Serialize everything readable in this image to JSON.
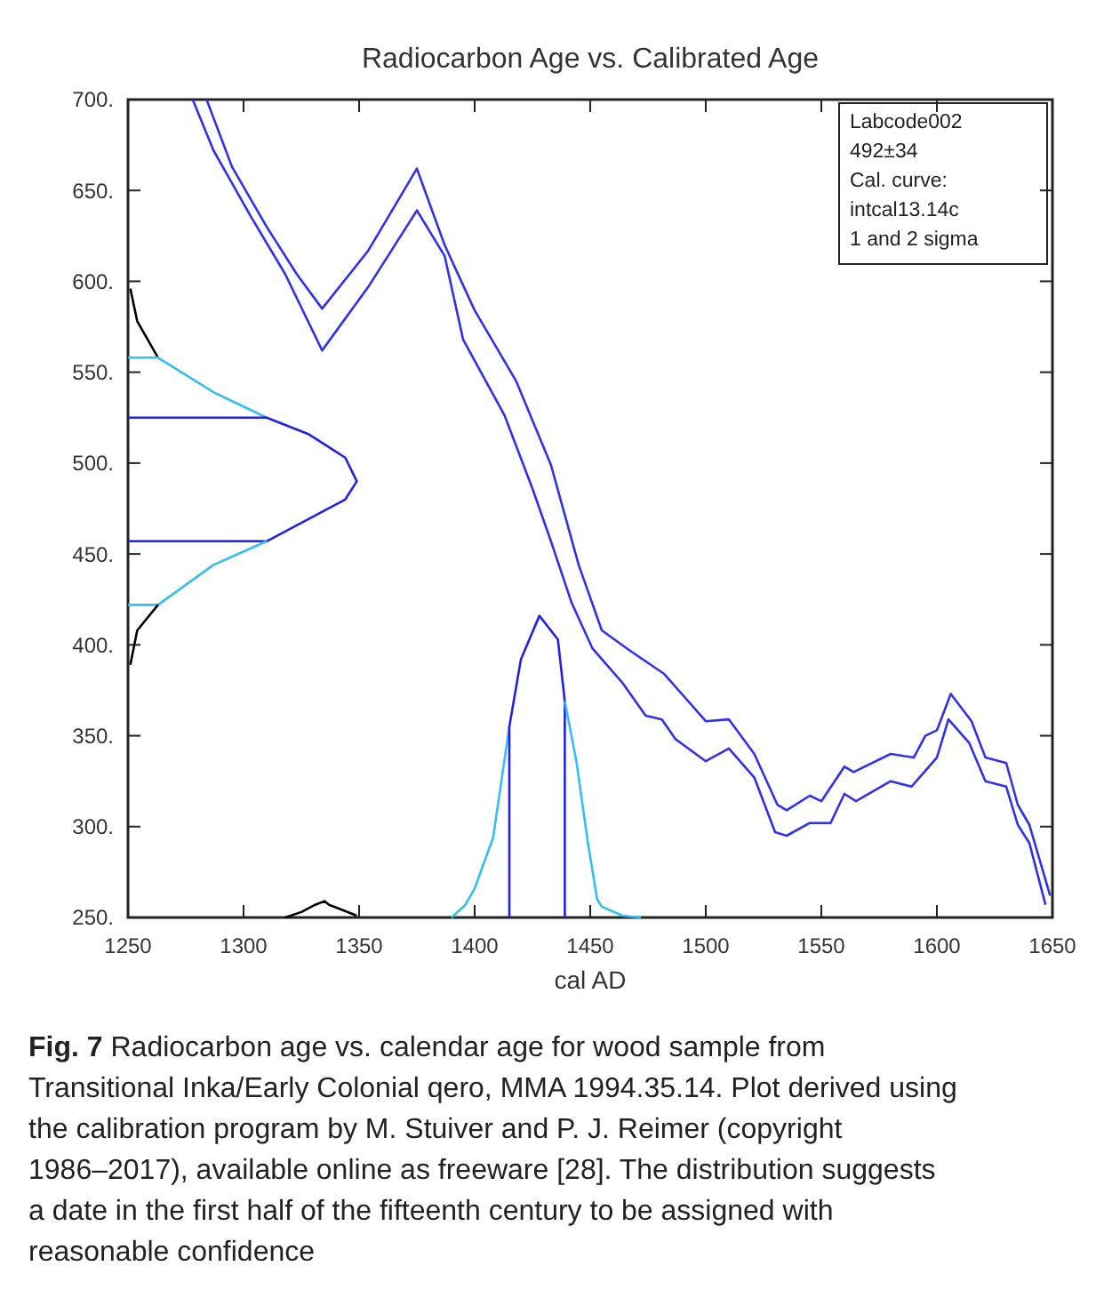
{
  "chart_data": {
    "type": "line",
    "title": "Radiocarbon Age vs. Calibrated Age",
    "xlabel": "cal AD",
    "xlim": [
      1250,
      1650
    ],
    "xticks": [
      1250,
      1300,
      1350,
      1400,
      1450,
      1500,
      1550,
      1600,
      1650
    ],
    "ylim": [
      250,
      700
    ],
    "yticks": [
      {
        "value": 250,
        "label": "250."
      },
      {
        "value": 300,
        "label": "300."
      },
      {
        "value": 350,
        "label": "350."
      },
      {
        "value": 400,
        "label": "400."
      },
      {
        "value": 450,
        "label": "450."
      },
      {
        "value": 500,
        "label": "500."
      },
      {
        "value": 550,
        "label": "550."
      },
      {
        "value": 600,
        "label": "600."
      },
      {
        "value": 650,
        "label": "650."
      },
      {
        "value": 700,
        "label": "700."
      }
    ],
    "grid": false,
    "marker": "none",
    "line_style": "solid",
    "series": [
      {
        "color": "#3030f0",
        "x": [
          1284,
          1295,
          1310,
          1323,
          1334,
          1354,
          1375,
          1387,
          1400,
          1418,
          1433,
          1445,
          1455,
          1467,
          1482,
          1500,
          1510,
          1521,
          1531,
          1535,
          1545,
          1550,
          1560,
          1564,
          1580,
          1590,
          1595,
          1600,
          1606,
          1615,
          1621,
          1630,
          1635,
          1640,
          1649
        ],
        "values": [
          700,
          663,
          630,
          604,
          585,
          617,
          662,
          620,
          584,
          545,
          499,
          444,
          408,
          397,
          384,
          358,
          359,
          340,
          312,
          309,
          317,
          314,
          333,
          330,
          340,
          338,
          350,
          353,
          373,
          358,
          338,
          335,
          312,
          301,
          262
        ]
      },
      {
        "color": "#3030f0",
        "x": [
          1278,
          1287,
          1303,
          1318,
          1334,
          1354,
          1375,
          1387,
          1395,
          1413,
          1425,
          1433,
          1442,
          1451,
          1464,
          1474,
          1481,
          1487,
          1500,
          1510,
          1521,
          1530,
          1535,
          1545,
          1554,
          1560,
          1565,
          1580,
          1589,
          1600,
          1605,
          1614,
          1621,
          1630,
          1635,
          1640,
          1647
        ],
        "values": [
          700,
          672,
          636,
          604,
          562,
          597,
          639,
          614,
          568,
          526,
          486,
          457,
          423,
          398,
          379,
          361,
          359,
          348,
          336,
          343,
          327,
          297,
          295,
          302,
          302,
          318,
          314,
          325,
          322,
          338,
          359,
          346,
          325,
          322,
          301,
          291,
          257
        ]
      },
      {
        "color": "#000000",
        "x": [
          1251,
          1254,
          1263
        ],
        "values": [
          596,
          578,
          558
        ]
      },
      {
        "color": "#33c0f0",
        "x": [
          1250,
          1263,
          1287,
          1310
        ],
        "values": [
          558,
          558,
          539,
          525
        ]
      },
      {
        "color": "#2020e8",
        "x": [
          1250,
          1310,
          1328,
          1344,
          1349,
          1344,
          1310,
          1250
        ],
        "values": [
          525,
          525,
          516,
          503,
          490,
          480,
          457,
          457
        ]
      },
      {
        "color": "#33c0f0",
        "x": [
          1310,
          1287,
          1263,
          1250
        ],
        "values": [
          457,
          444,
          422,
          422
        ]
      },
      {
        "color": "#000000",
        "x": [
          1263,
          1254,
          1251
        ],
        "values": [
          422,
          408,
          389
        ]
      },
      {
        "color": "#33c0f0",
        "x": [
          1390,
          1396,
          1400,
          1408,
          1415
        ],
        "values": [
          250,
          257,
          266,
          294,
          355
        ]
      },
      {
        "color": "#2020e8",
        "x": [
          1415,
          1415,
          1420,
          1428,
          1436,
          1439,
          1439
        ],
        "values": [
          250,
          355,
          392,
          416,
          403,
          369,
          250
        ]
      },
      {
        "color": "#33c0f0",
        "x": [
          1439,
          1444,
          1449,
          1453,
          1455,
          1464,
          1472
        ],
        "values": [
          369,
          336,
          291,
          260,
          256,
          251,
          250
        ]
      },
      {
        "color": "#000000",
        "x": [
          1318,
          1325,
          1331,
          1335,
          1337,
          1343,
          1349
        ],
        "values": [
          250,
          253,
          257,
          259,
          257,
          254,
          251
        ]
      }
    ],
    "annotations": [
      "Labcode002",
      "492±34",
      "Cal. curve:",
      "intcal13.14c",
      "1 and 2 sigma",
      "Fig. 7",
      "Radiocarbon age vs. calendar age for wood sample from Transitional Inka/Early Colonial qero, MMA 1994.35.14. Plot derived using the calibration program by M. Stuiver and P. J. Reimer (copyright 1986–2017), available online as freeware [28]. The distribution suggests a date in the first half of the fifteenth century to be assigned with reasonable confidence"
    ]
  }
}
